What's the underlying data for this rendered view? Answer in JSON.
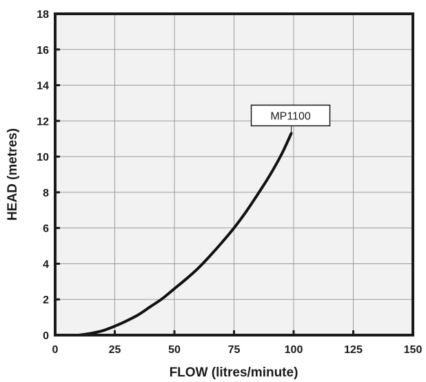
{
  "chart_data": {
    "type": "line",
    "title": "",
    "xlabel": "FLOW (litres/minute)",
    "ylabel": "HEAD (metres)",
    "xlim": [
      0,
      150
    ],
    "ylim": [
      0,
      18
    ],
    "xticks": [
      0,
      25,
      50,
      75,
      100,
      125,
      150
    ],
    "yticks": [
      0,
      2,
      4,
      6,
      8,
      10,
      12,
      14,
      16,
      18
    ],
    "grid": true,
    "series": [
      {
        "name": "MP1100",
        "color": "#111111",
        "x": [
          10,
          15,
          20,
          25,
          30,
          35,
          40,
          45,
          50,
          55,
          60,
          65,
          70,
          75,
          80,
          85,
          90,
          95,
          99
        ],
        "y": [
          0,
          0.1,
          0.25,
          0.5,
          0.8,
          1.15,
          1.6,
          2.05,
          2.6,
          3.15,
          3.75,
          4.45,
          5.2,
          6.0,
          6.9,
          7.9,
          8.95,
          10.15,
          11.3
        ]
      }
    ],
    "annotations": [
      {
        "text": "MP1100",
        "series": 0
      }
    ]
  }
}
